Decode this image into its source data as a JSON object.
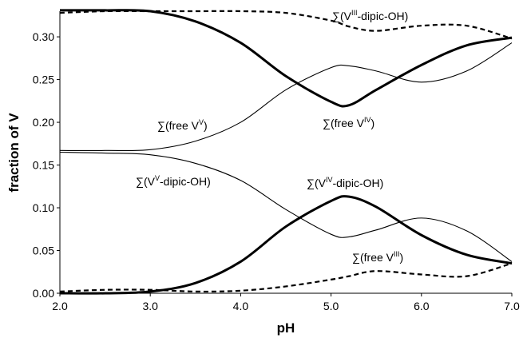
{
  "chart_data": {
    "type": "line",
    "xlabel": "pH",
    "ylabel": "fraction of V",
    "xlim": [
      2.0,
      7.0
    ],
    "ylim": [
      0.0,
      0.33
    ],
    "x_ticks": [
      "2.0",
      "3.0",
      "4.0",
      "5.0",
      "6.0",
      "7.0"
    ],
    "y_ticks": [
      "0.00",
      "0.05",
      "0.10",
      "0.15",
      "0.20",
      "0.25",
      "0.30"
    ],
    "grid": false,
    "legend": "none",
    "x": [
      2.0,
      2.5,
      3.0,
      3.5,
      4.0,
      4.5,
      5.0,
      5.2,
      5.5,
      6.0,
      6.5,
      7.0
    ],
    "series": [
      {
        "label_main": "∑(free V",
        "label_sup": "V",
        "label_end": ")",
        "style": "thin",
        "values": [
          0.167,
          0.167,
          0.168,
          0.178,
          0.2,
          0.238,
          0.264,
          0.266,
          0.26,
          0.247,
          0.26,
          0.293
        ]
      },
      {
        "label_main": "∑(free V",
        "label_sup": "IV",
        "label_end": ")",
        "style": "bold",
        "values": [
          0.331,
          0.331,
          0.33,
          0.318,
          0.293,
          0.254,
          0.224,
          0.22,
          0.238,
          0.267,
          0.29,
          0.299
        ]
      },
      {
        "label_main": "∑(V",
        "label_sup": "V",
        "label_end": "-dipic-OH)",
        "style": "thin",
        "values": [
          0.165,
          0.164,
          0.162,
          0.152,
          0.132,
          0.098,
          0.069,
          0.066,
          0.074,
          0.088,
          0.073,
          0.037
        ]
      },
      {
        "label_main": "∑(V",
        "label_sup": "IV",
        "label_end": "-dipic-OH)",
        "style": "bold",
        "values": [
          0.0,
          0.0,
          0.002,
          0.012,
          0.037,
          0.078,
          0.108,
          0.113,
          0.101,
          0.068,
          0.045,
          0.035
        ]
      },
      {
        "label_main": "∑(V",
        "label_sup": "III",
        "label_end": "-dipic-OH)",
        "style": "dashed",
        "values": [
          0.328,
          0.33,
          0.33,
          0.33,
          0.33,
          0.328,
          0.319,
          0.312,
          0.307,
          0.313,
          0.313,
          0.298
        ]
      },
      {
        "label_main": "∑(free V",
        "label_sup": "III",
        "label_end": ")",
        "style": "dashed",
        "values": [
          0.002,
          0.004,
          0.004,
          0.002,
          0.003,
          0.008,
          0.016,
          0.02,
          0.026,
          0.022,
          0.02,
          0.035
        ]
      }
    ]
  }
}
